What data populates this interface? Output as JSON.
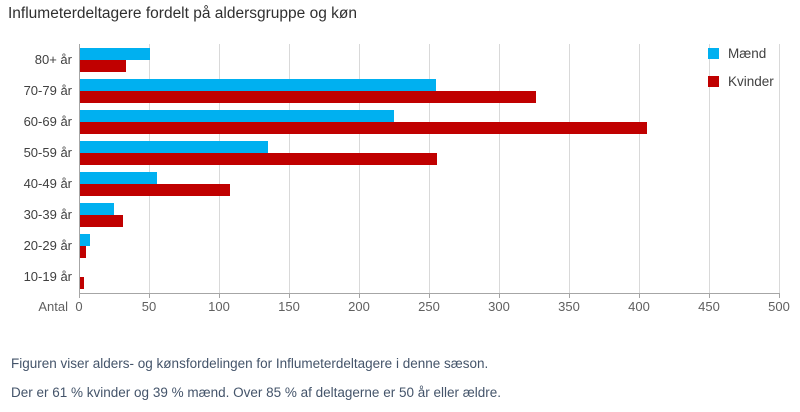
{
  "title": "Influmeterdeltagere fordelt på aldersgruppe og køn",
  "legend": {
    "items": [
      {
        "label": "Mænd",
        "color": "#00B0F0"
      },
      {
        "label": "Kvinder",
        "color": "#C00000"
      }
    ]
  },
  "chart_data": {
    "type": "bar",
    "orientation": "horizontal",
    "title": "Influmeterdeltagere fordelt på aldersgruppe og køn",
    "categories": [
      "80+ år",
      "70-79 år",
      "60-69 år",
      "50-59 år",
      "40-49 år",
      "30-39 år",
      "20-29 år",
      "10-19 år"
    ],
    "series": [
      {
        "name": "Mænd",
        "color": "#00B0F0",
        "values": [
          50,
          254,
          224,
          134,
          55,
          24,
          7,
          0
        ]
      },
      {
        "name": "Kvinder",
        "color": "#C00000",
        "values": [
          33,
          326,
          405,
          255,
          107,
          31,
          4,
          3
        ]
      }
    ],
    "xlabel": "Antal",
    "xlim": [
      0,
      500
    ],
    "xticks": [
      0,
      50,
      100,
      150,
      200,
      250,
      300,
      350,
      400,
      450,
      500
    ],
    "grid": true,
    "legend_position": "top-right"
  },
  "footer": {
    "line1": "Figuren viser alders- og kønsfordelingen for Influmeterdeltagere i denne sæson.",
    "line2": "Der er 61 % kvinder og 39 % mænd. Over 85 % af deltagerne er 50 år eller ældre."
  }
}
